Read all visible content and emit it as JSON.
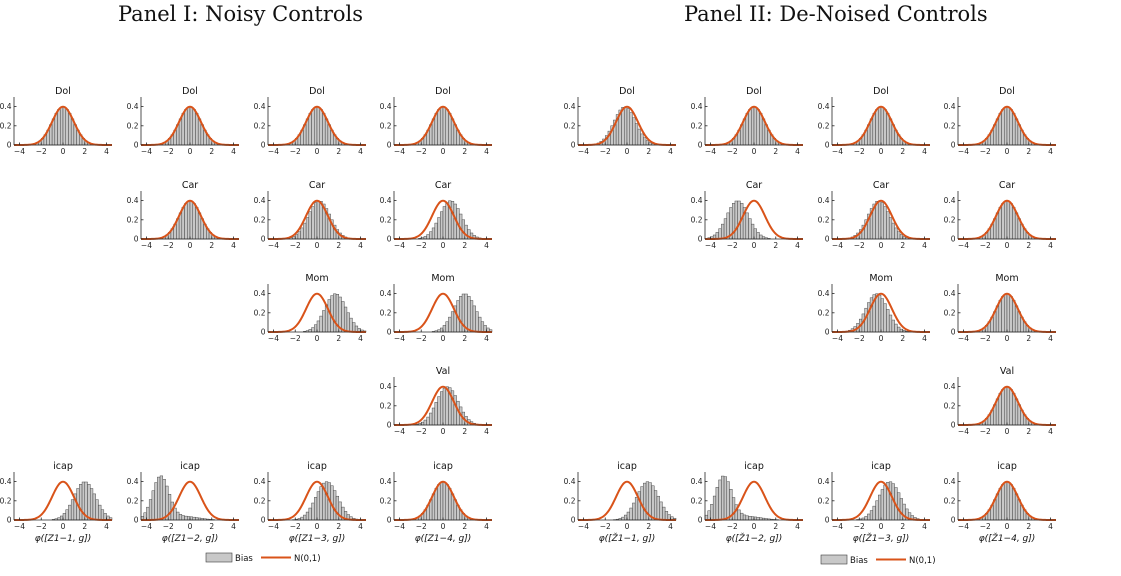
{
  "panel_titles": [
    "Panel I: Noisy Controls",
    "Panel II: De-Noised Controls"
  ],
  "colors": {
    "histogram_fill": "#c8c8c8",
    "histogram_edge": "#3c3c3c",
    "normal_curve": "#d95319",
    "axis": "#262626"
  },
  "chart_data": [
    {
      "type": "bar",
      "panel": "Panel I: Noisy Controls",
      "bin_width": 0.25,
      "xlim": [
        -4.5,
        4.5
      ],
      "ylim": [
        0,
        0.5
      ],
      "xticks": [
        -4,
        -2,
        0,
        2,
        4
      ],
      "yticks": [
        0,
        0.2,
        0.4
      ],
      "overlay": "normal density N(0,1)",
      "legend": {
        "entries": [
          "Bias",
          "N(0,1)"
        ],
        "placement": "bottom-center"
      },
      "column_xlabels": [
        "φ([Z1−1, g])",
        "φ([Z1−2, g])",
        "φ([Z1−3, g])",
        "φ([Z1−4, g])"
      ],
      "subplots": [
        {
          "id": "p1-dol-1",
          "title": "Dol",
          "column": 1,
          "row": 1,
          "bias_mean": 0.0,
          "bias_sd": 1.0
        },
        {
          "id": "p1-dol-2",
          "title": "Dol",
          "column": 2,
          "row": 1,
          "bias_mean": 0.0,
          "bias_sd": 1.0
        },
        {
          "id": "p1-dol-3",
          "title": "Dol",
          "column": 3,
          "row": 1,
          "bias_mean": 0.0,
          "bias_sd": 1.0
        },
        {
          "id": "p1-dol-4",
          "title": "Dol",
          "column": 4,
          "row": 1,
          "bias_mean": 0.0,
          "bias_sd": 1.0
        },
        {
          "id": "p1-car-2",
          "title": "Car",
          "column": 2,
          "row": 2,
          "bias_mean": 0.0,
          "bias_sd": 1.0
        },
        {
          "id": "p1-car-3",
          "title": "Car",
          "column": 3,
          "row": 2,
          "bias_mean": 0.2,
          "bias_sd": 1.0
        },
        {
          "id": "p1-car-4",
          "title": "Car",
          "column": 4,
          "row": 2,
          "bias_mean": 0.7,
          "bias_sd": 1.0
        },
        {
          "id": "p1-mom-3",
          "title": "Mom",
          "column": 3,
          "row": 3,
          "bias_mean": 1.7,
          "bias_sd": 1.0
        },
        {
          "id": "p1-mom-4",
          "title": "Mom",
          "column": 4,
          "row": 3,
          "bias_mean": 2.0,
          "bias_sd": 1.0
        },
        {
          "id": "p1-val-4",
          "title": "Val",
          "column": 4,
          "row": 4,
          "bias_mean": 0.4,
          "bias_sd": 1.0
        },
        {
          "id": "p1-icap-1",
          "title": "icap",
          "column": 1,
          "row": 5,
          "bias_mean": 2.0,
          "bias_sd": 1.0
        },
        {
          "id": "p1-icap-2",
          "title": "icap",
          "column": 2,
          "row": 5,
          "bias_mean": -2.7,
          "bias_sd": 1.0,
          "skew": "right"
        },
        {
          "id": "p1-icap-3",
          "title": "icap",
          "column": 3,
          "row": 5,
          "bias_mean": 0.9,
          "bias_sd": 1.0
        },
        {
          "id": "p1-icap-4",
          "title": "icap",
          "column": 4,
          "row": 5,
          "bias_mean": 0.0,
          "bias_sd": 1.0
        }
      ]
    },
    {
      "type": "bar",
      "panel": "Panel II: De-Noised Controls",
      "bin_width": 0.25,
      "xlim": [
        -4.5,
        4.5
      ],
      "ylim": [
        0,
        0.5
      ],
      "xticks": [
        -4,
        -2,
        0,
        2,
        4
      ],
      "yticks": [
        0,
        0.2,
        0.4
      ],
      "overlay": "normal density N(0,1)",
      "legend": {
        "entries": [
          "Bias",
          "N(0,1)"
        ],
        "placement": "bottom-center"
      },
      "column_xlabels": [
        "φ([Ž1−1, g])",
        "φ([Ž1−2, g])",
        "φ([Ž1−3, g])",
        "φ([Ž1−4, g])"
      ],
      "subplots": [
        {
          "id": "p2-dol-1",
          "title": "Dol",
          "column": 1,
          "row": 1,
          "bias_mean": -0.2,
          "bias_sd": 1.0
        },
        {
          "id": "p2-dol-2",
          "title": "Dol",
          "column": 2,
          "row": 1,
          "bias_mean": 0.0,
          "bias_sd": 1.0
        },
        {
          "id": "p2-dol-3",
          "title": "Dol",
          "column": 3,
          "row": 1,
          "bias_mean": 0.0,
          "bias_sd": 1.0
        },
        {
          "id": "p2-dol-4",
          "title": "Dol",
          "column": 4,
          "row": 1,
          "bias_mean": 0.0,
          "bias_sd": 1.0
        },
        {
          "id": "p2-car-2",
          "title": "Car",
          "column": 2,
          "row": 2,
          "bias_mean": -1.5,
          "bias_sd": 1.0
        },
        {
          "id": "p2-car-3",
          "title": "Car",
          "column": 3,
          "row": 2,
          "bias_mean": -0.2,
          "bias_sd": 1.0
        },
        {
          "id": "p2-car-4",
          "title": "Car",
          "column": 4,
          "row": 2,
          "bias_mean": 0.0,
          "bias_sd": 1.0
        },
        {
          "id": "p2-mom-3",
          "title": "Mom",
          "column": 3,
          "row": 3,
          "bias_mean": -0.4,
          "bias_sd": 1.0
        },
        {
          "id": "p2-mom-4",
          "title": "Mom",
          "column": 4,
          "row": 3,
          "bias_mean": 0.0,
          "bias_sd": 1.0
        },
        {
          "id": "p2-val-4",
          "title": "Val",
          "column": 4,
          "row": 4,
          "bias_mean": 0.0,
          "bias_sd": 1.0
        },
        {
          "id": "p2-icap-1",
          "title": "icap",
          "column": 1,
          "row": 5,
          "bias_mean": 1.9,
          "bias_sd": 1.0
        },
        {
          "id": "p2-icap-2",
          "title": "icap",
          "column": 2,
          "row": 5,
          "bias_mean": -2.8,
          "bias_sd": 1.0,
          "skew": "right"
        },
        {
          "id": "p2-icap-3",
          "title": "icap",
          "column": 3,
          "row": 5,
          "bias_mean": 0.8,
          "bias_sd": 1.0
        },
        {
          "id": "p2-icap-4",
          "title": "icap",
          "column": 4,
          "row": 5,
          "bias_mean": 0.0,
          "bias_sd": 1.0
        }
      ]
    }
  ]
}
